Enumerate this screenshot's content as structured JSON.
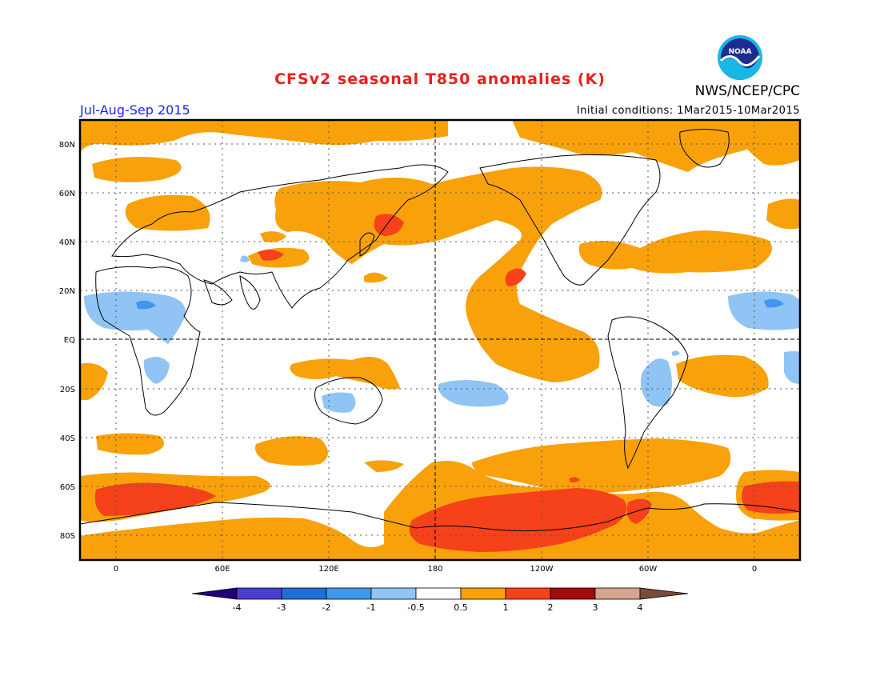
{
  "header": {
    "title": "CFSv2 seasonal T850 anomalies (K)",
    "agency": "NWS/NCEP/CPC",
    "period": "Jul-Aug-Sep 2015",
    "initial_conditions": "Initial conditions: 1Mar2015-10Mar2015",
    "logo_text": "NOAA"
  },
  "map": {
    "lat_labels": [
      "80N",
      "60N",
      "40N",
      "20N",
      "EQ",
      "20S",
      "40S",
      "60S",
      "80S"
    ],
    "lon_labels": [
      "0",
      "60E",
      "120E",
      "180",
      "120W",
      "60W",
      "0"
    ]
  },
  "legend": {
    "tick_labels": [
      "-4",
      "-3",
      "-2",
      "-1",
      "-0.5",
      "0.5",
      "1",
      "2",
      "3",
      "4"
    ],
    "colors": {
      "below_-4": "#23007a",
      "-4_-3": "#4a3fcf",
      "-3_-2": "#1f6fd6",
      "-2_-1": "#3f98ec",
      "-1_-0.5": "#8fc4f5",
      "-0.5_0.5": "#ffffff",
      "0.5_1": "#f9a10a",
      "1_2": "#f5421a",
      "2_3": "#a10b0b",
      "3_4": "#d4a591",
      "above_4": "#7a4a3a"
    }
  }
}
